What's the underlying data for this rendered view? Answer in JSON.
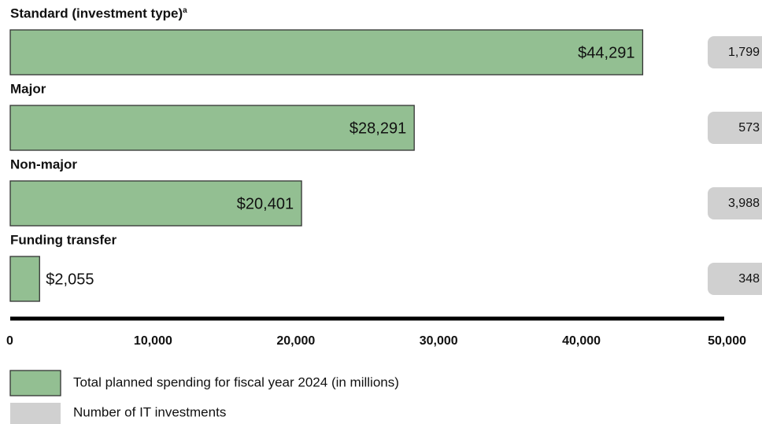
{
  "chart_data": {
    "type": "bar",
    "orientation": "horizontal",
    "categories": [
      "Standard (investment type)",
      "Major",
      "Non-major",
      "Funding transfer"
    ],
    "footnotes": [
      "a",
      null,
      null,
      null
    ],
    "series": [
      {
        "name": "Total planned spending for fiscal year 2024 (in millions)",
        "color": "#93bf92",
        "values": [
          44291,
          28291,
          20401,
          2055
        ],
        "value_labels": [
          "$44,291",
          "$28,291",
          "$20,401",
          "$2,055"
        ]
      },
      {
        "name": "Number of IT investments",
        "color": "#d0d0d0",
        "values": [
          1799,
          573,
          3988,
          348
        ],
        "value_labels": [
          "1,799",
          "573",
          "3,988",
          "348"
        ]
      }
    ],
    "xlim": [
      0,
      50000
    ],
    "xticks": [
      0,
      {
        "value": 10000,
        "label": "10,000"
      },
      {
        "value": 20000,
        "label": "20,000"
      },
      {
        "value": 30000,
        "label": "30,000"
      },
      {
        "value": 40000,
        "label": "40,000"
      },
      {
        "value": 50000,
        "label": "50,000"
      }
    ]
  }
}
